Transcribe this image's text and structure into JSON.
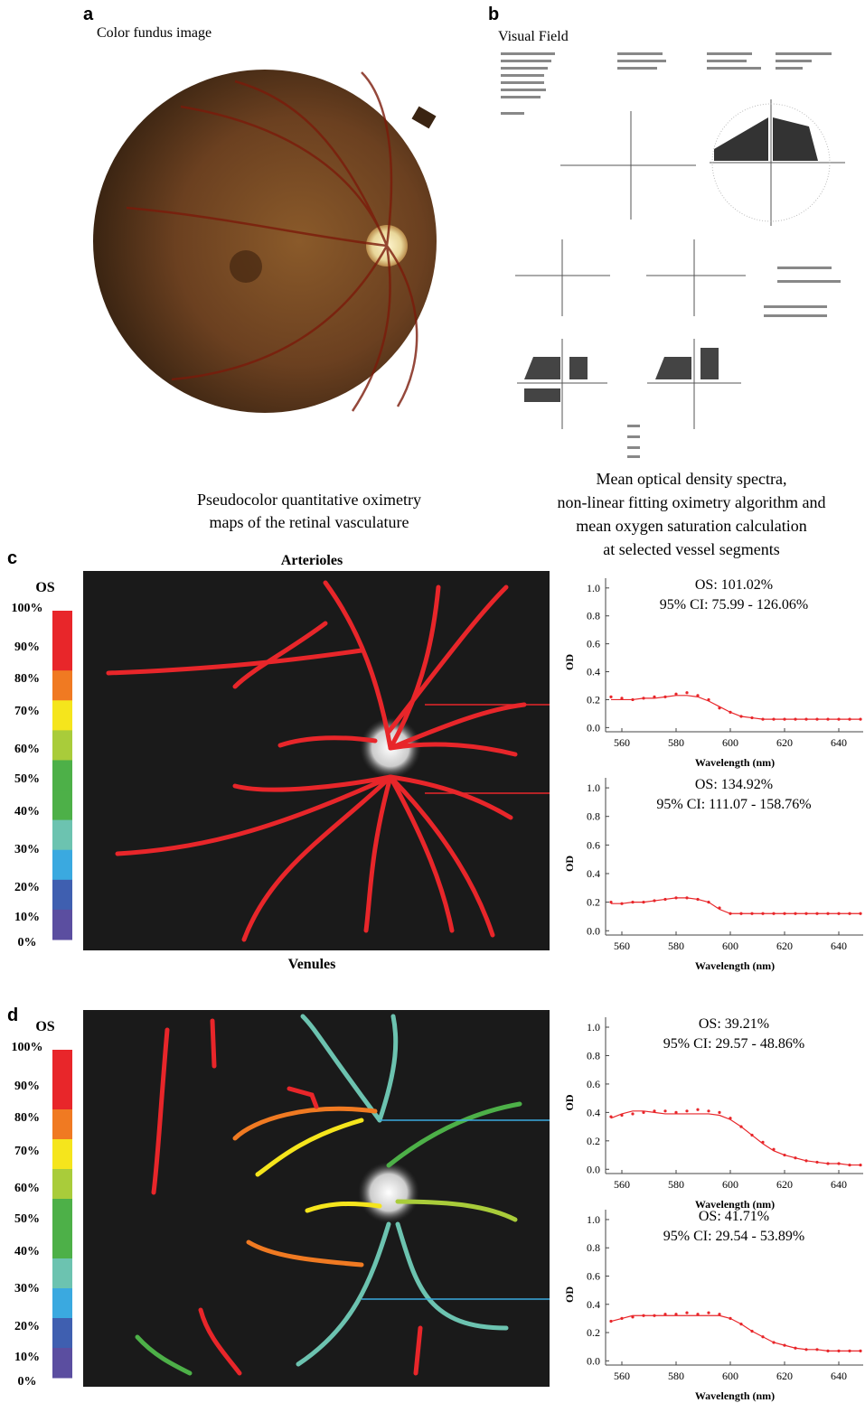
{
  "panels": {
    "a": {
      "label": "a",
      "title": "Color fundus image"
    },
    "b": {
      "label": "b",
      "title": "Visual Field"
    },
    "caption_left": [
      "Pseudocolor quantitative oximetry",
      "maps of the retinal vasculature"
    ],
    "caption_right": [
      "Mean optical density spectra,",
      "non-linear fitting oximetry algorithm and",
      "mean oxygen saturation calculation",
      "at selected vessel segments"
    ],
    "c": {
      "label": "c",
      "title": "Arterioles",
      "footer": "Venules",
      "scale_title": "OS",
      "scale_labels": [
        "100%",
        "90%",
        "80%",
        "70%",
        "60%",
        "50%",
        "40%",
        "30%",
        "20%",
        "10%",
        "0%"
      ]
    },
    "d": {
      "label": "d",
      "scale_title": "OS",
      "scale_labels": [
        "100%",
        "90%",
        "80%",
        "70%",
        "60%",
        "50%",
        "40%",
        "30%",
        "20%",
        "10%",
        "0%"
      ]
    },
    "scale_colors": [
      "#e8262a",
      "#e8262a",
      "#f07a22",
      "#f5e51c",
      "#a9cc3a",
      "#4db048",
      "#4db048",
      "#6cc3b0",
      "#3aa9e0",
      "#3f5fb0",
      "#5b4ea0"
    ]
  },
  "chart_data": [
    {
      "type": "scatter",
      "title": "OS: 101.02%",
      "subtitle": "95% CI: 75.99 - 126.06%",
      "x_label": "Wavelength (nm)",
      "y_label": "OD",
      "x": [
        556,
        560,
        564,
        568,
        572,
        576,
        580,
        584,
        588,
        592,
        596,
        600,
        604,
        608,
        612,
        616,
        620,
        624,
        628,
        632,
        636,
        640,
        644,
        648
      ],
      "series": [
        {
          "mode": "markers",
          "color": "#e8262a",
          "values": [
            0.22,
            0.21,
            0.2,
            0.21,
            0.22,
            0.22,
            0.24,
            0.25,
            0.23,
            0.2,
            0.14,
            0.11,
            0.08,
            0.07,
            0.06,
            0.06,
            0.06,
            0.06,
            0.06,
            0.06,
            0.06,
            0.06,
            0.06,
            0.06
          ]
        },
        {
          "mode": "line",
          "color": "#e8262a",
          "values": [
            0.2,
            0.2,
            0.2,
            0.21,
            0.21,
            0.22,
            0.23,
            0.23,
            0.22,
            0.19,
            0.15,
            0.11,
            0.08,
            0.07,
            0.06,
            0.06,
            0.06,
            0.06,
            0.06,
            0.06,
            0.06,
            0.06,
            0.06,
            0.06
          ]
        }
      ],
      "xlim": [
        554,
        649
      ],
      "ylim": [
        -0.03,
        1.07
      ],
      "xticks": [
        560,
        580,
        600,
        620,
        640
      ],
      "yticks": [
        {
          "value": 0,
          "label": "0.0"
        },
        0.2,
        0.4,
        0.6,
        0.8,
        {
          "value": 1,
          "label": "1.0"
        }
      ]
    },
    {
      "type": "scatter",
      "title": "OS: 134.92%",
      "subtitle": "95% CI: 111.07 - 158.76%",
      "x_label": "Wavelength (nm)",
      "y_label": "OD",
      "x": [
        556,
        560,
        564,
        568,
        572,
        576,
        580,
        584,
        588,
        592,
        596,
        600,
        604,
        608,
        612,
        616,
        620,
        624,
        628,
        632,
        636,
        640,
        644,
        648
      ],
      "series": [
        {
          "mode": "markers",
          "color": "#e8262a",
          "values": [
            0.2,
            0.19,
            0.2,
            0.2,
            0.21,
            0.22,
            0.23,
            0.23,
            0.22,
            0.2,
            0.16,
            0.12,
            0.12,
            0.12,
            0.12,
            0.12,
            0.12,
            0.12,
            0.12,
            0.12,
            0.12,
            0.12,
            0.12,
            0.12
          ]
        },
        {
          "mode": "line",
          "color": "#e8262a",
          "values": [
            0.19,
            0.19,
            0.2,
            0.2,
            0.21,
            0.22,
            0.23,
            0.23,
            0.22,
            0.2,
            0.15,
            0.12,
            0.12,
            0.12,
            0.12,
            0.12,
            0.12,
            0.12,
            0.12,
            0.12,
            0.12,
            0.12,
            0.12,
            0.12
          ]
        }
      ],
      "xlim": [
        554,
        649
      ],
      "ylim": [
        -0.03,
        1.07
      ],
      "xticks": [
        560,
        580,
        600,
        620,
        640
      ],
      "yticks": [
        {
          "value": 0,
          "label": "0.0"
        },
        0.2,
        0.4,
        0.6,
        0.8,
        {
          "value": 1,
          "label": "1.0"
        }
      ]
    },
    {
      "type": "scatter",
      "title": "OS: 39.21%",
      "subtitle": "95% CI: 29.57 - 48.86%",
      "x_label": "Wavelength (nm)",
      "y_label": "OD",
      "x": [
        556,
        560,
        564,
        568,
        572,
        576,
        580,
        584,
        588,
        592,
        596,
        600,
        604,
        608,
        612,
        616,
        620,
        624,
        628,
        632,
        636,
        640,
        644,
        648
      ],
      "series": [
        {
          "mode": "markers",
          "color": "#e8262a",
          "values": [
            0.37,
            0.38,
            0.39,
            0.4,
            0.41,
            0.41,
            0.4,
            0.41,
            0.42,
            0.41,
            0.4,
            0.36,
            0.3,
            0.24,
            0.19,
            0.14,
            0.1,
            0.08,
            0.06,
            0.05,
            0.04,
            0.04,
            0.03,
            0.03
          ]
        },
        {
          "mode": "line",
          "color": "#e8262a",
          "values": [
            0.36,
            0.39,
            0.41,
            0.41,
            0.4,
            0.39,
            0.39,
            0.39,
            0.39,
            0.39,
            0.38,
            0.35,
            0.3,
            0.24,
            0.18,
            0.13,
            0.1,
            0.08,
            0.06,
            0.05,
            0.04,
            0.04,
            0.03,
            0.03
          ]
        }
      ],
      "xlim": [
        554,
        649
      ],
      "ylim": [
        -0.03,
        1.07
      ],
      "xticks": [
        560,
        580,
        600,
        620,
        640
      ],
      "yticks": [
        {
          "value": 0,
          "label": "0.0"
        },
        0.2,
        0.4,
        0.6,
        0.8,
        {
          "value": 1,
          "label": "1.0"
        }
      ]
    },
    {
      "type": "scatter",
      "title": "OS: 41.71%",
      "subtitle": "95% CI: 29.54 - 53.89%",
      "x_label": "Wavelength (nm)",
      "y_label": "OD",
      "x": [
        556,
        560,
        564,
        568,
        572,
        576,
        580,
        584,
        588,
        592,
        596,
        600,
        604,
        608,
        612,
        616,
        620,
        624,
        628,
        632,
        636,
        640,
        644,
        648
      ],
      "series": [
        {
          "mode": "markers",
          "color": "#e8262a",
          "values": [
            0.28,
            0.3,
            0.31,
            0.32,
            0.32,
            0.33,
            0.33,
            0.34,
            0.33,
            0.34,
            0.33,
            0.3,
            0.26,
            0.21,
            0.17,
            0.13,
            0.11,
            0.09,
            0.08,
            0.08,
            0.07,
            0.07,
            0.07,
            0.07
          ]
        },
        {
          "mode": "line",
          "color": "#e8262a",
          "values": [
            0.28,
            0.3,
            0.32,
            0.32,
            0.32,
            0.32,
            0.32,
            0.32,
            0.32,
            0.32,
            0.32,
            0.3,
            0.26,
            0.21,
            0.17,
            0.13,
            0.11,
            0.09,
            0.08,
            0.08,
            0.07,
            0.07,
            0.07,
            0.07
          ]
        }
      ],
      "xlim": [
        554,
        649
      ],
      "ylim": [
        -0.03,
        1.07
      ],
      "xticks": [
        560,
        580,
        600,
        620,
        640
      ],
      "yticks": [
        {
          "value": 0,
          "label": "0.0"
        },
        0.2,
        0.4,
        0.6,
        0.8,
        {
          "value": 1,
          "label": "1.0"
        }
      ]
    }
  ]
}
